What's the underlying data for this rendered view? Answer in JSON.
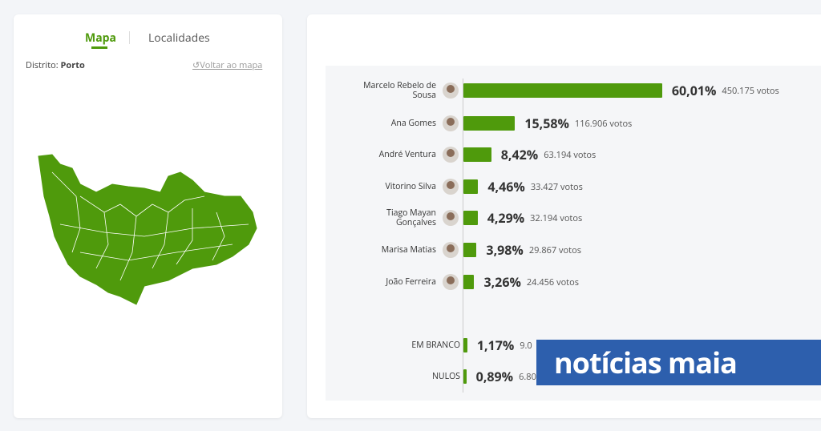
{
  "tabs": [
    "Mapa",
    "Localidades"
  ],
  "district": {
    "label": "Distrito:",
    "name": "Porto"
  },
  "back_link": "Voltar ao mapa",
  "results": {
    "rows": [
      {
        "name": "Marcelo Rebelo de Sousa",
        "percent": 60.01,
        "percent_label": "60,01%",
        "votes": "450.175 votos"
      },
      {
        "name": "Ana Gomes",
        "percent": 15.58,
        "percent_label": "15,58%",
        "votes": "116.906 votos"
      },
      {
        "name": "André Ventura",
        "percent": 8.42,
        "percent_label": "8,42%",
        "votes": "63.194 votos"
      },
      {
        "name": "Vitorino Silva",
        "percent": 4.46,
        "percent_label": "4,46%",
        "votes": "33.427 votos"
      },
      {
        "name": "Tiago Mayan Gonçalves",
        "percent": 4.29,
        "percent_label": "4,29%",
        "votes": "32.194 votos"
      },
      {
        "name": "Marisa Matias",
        "percent": 3.98,
        "percent_label": "3,98%",
        "votes": "29.867 votos"
      },
      {
        "name": "João Ferreira",
        "percent": 3.26,
        "percent_label": "3,26%",
        "votes": "24.456 votos"
      }
    ],
    "other_rows": [
      {
        "name": "EM BRANCO",
        "percent": 1.17,
        "percent_label": "1,17%",
        "votes": "9.0"
      },
      {
        "name": "NULOS",
        "percent": 0.89,
        "percent_label": "0,89%",
        "votes": "6.80"
      }
    ]
  },
  "watermark": "notícias maia"
}
